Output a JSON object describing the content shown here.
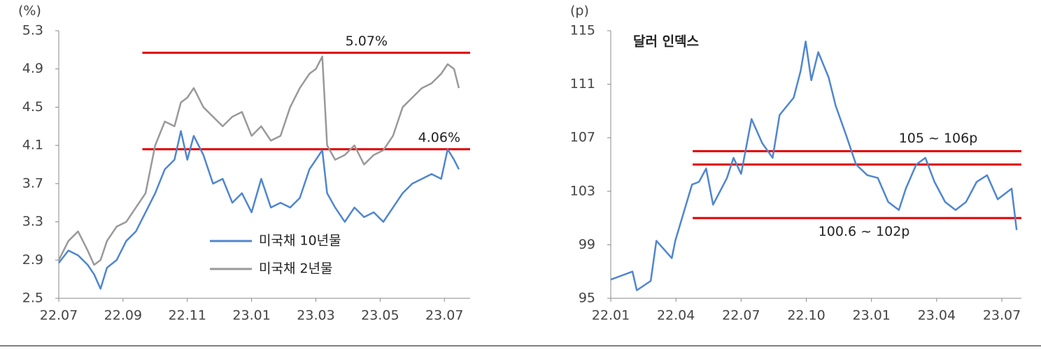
{
  "chart_data": [
    {
      "type": "line",
      "unit_label": "(%)",
      "xlim": [
        0,
        12.8
      ],
      "ylim": [
        2.5,
        5.3
      ],
      "xticks": [
        {
          "value": 0,
          "label": "22.07"
        },
        {
          "value": 2,
          "label": "22.09"
        },
        {
          "value": 4,
          "label": "22.11"
        },
        {
          "value": 6,
          "label": "23.01"
        },
        {
          "value": 8,
          "label": "23.03"
        },
        {
          "value": 10,
          "label": "23.05"
        },
        {
          "value": 12,
          "label": "23.07"
        }
      ],
      "yticks": [
        2.5,
        2.9,
        3.3,
        3.7,
        4.1,
        4.5,
        4.9,
        5.3
      ],
      "x": [
        0,
        0.3,
        0.6,
        0.9,
        1.1,
        1.3,
        1.5,
        1.8,
        2.1,
        2.4,
        2.7,
        3.0,
        3.3,
        3.6,
        3.8,
        4.0,
        4.2,
        4.5,
        4.8,
        5.1,
        5.4,
        5.7,
        6.0,
        6.3,
        6.6,
        6.9,
        7.2,
        7.5,
        7.8,
        8.0,
        8.2,
        8.35,
        8.6,
        8.9,
        9.2,
        9.5,
        9.8,
        10.1,
        10.4,
        10.7,
        11.0,
        11.3,
        11.6,
        11.9,
        12.1,
        12.3,
        12.45
      ],
      "series": [
        {
          "name": "미국채 10년물",
          "color": "#4f86cf",
          "values": [
            2.87,
            3.0,
            2.95,
            2.85,
            2.75,
            2.6,
            2.82,
            2.9,
            3.1,
            3.2,
            3.4,
            3.6,
            3.85,
            3.95,
            4.25,
            3.95,
            4.2,
            4.0,
            3.7,
            3.75,
            3.5,
            3.6,
            3.4,
            3.75,
            3.45,
            3.5,
            3.45,
            3.55,
            3.85,
            3.95,
            4.05,
            3.6,
            3.45,
            3.3,
            3.45,
            3.35,
            3.4,
            3.3,
            3.45,
            3.6,
            3.7,
            3.75,
            3.8,
            3.75,
            4.06,
            3.95,
            3.85
          ]
        },
        {
          "name": "미국채 2년물",
          "color": "#999999",
          "values": [
            2.9,
            3.1,
            3.2,
            3.0,
            2.85,
            2.9,
            3.1,
            3.25,
            3.3,
            3.45,
            3.6,
            4.1,
            4.35,
            4.3,
            4.55,
            4.6,
            4.7,
            4.5,
            4.4,
            4.3,
            4.4,
            4.45,
            4.2,
            4.3,
            4.15,
            4.2,
            4.5,
            4.7,
            4.85,
            4.9,
            5.03,
            4.1,
            3.95,
            4.0,
            4.1,
            3.9,
            4.0,
            4.05,
            4.2,
            4.5,
            4.6,
            4.7,
            4.75,
            4.85,
            4.95,
            4.9,
            4.7
          ]
        }
      ],
      "hlines": [
        5.07,
        4.06
      ],
      "hline_labels": [
        "5.07%",
        "4.06%"
      ],
      "hline_color": "#e00000",
      "hline_from": 2.6
    },
    {
      "type": "line",
      "unit_label": "(p)",
      "title": "달러 인덱스",
      "xlim": [
        0,
        18.9
      ],
      "ylim": [
        95,
        115
      ],
      "xticks": [
        {
          "value": 0,
          "label": "22.01"
        },
        {
          "value": 3,
          "label": "22.04"
        },
        {
          "value": 6,
          "label": "22.07"
        },
        {
          "value": 9,
          "label": "22.10"
        },
        {
          "value": 12,
          "label": "23.01"
        },
        {
          "value": 15,
          "label": "23.04"
        },
        {
          "value": 18,
          "label": "23.07"
        }
      ],
      "yticks": [
        95,
        99,
        103,
        107,
        111,
        115
      ],
      "x": [
        0,
        1,
        1.2,
        1.84,
        2.1,
        2.81,
        2.97,
        3.74,
        4.06,
        4.39,
        4.71,
        5.35,
        5.65,
        6.0,
        6.48,
        6.97,
        7.45,
        7.77,
        8.42,
        8.74,
        8.97,
        9.23,
        9.55,
        10.03,
        10.35,
        10.81,
        11.29,
        11.81,
        12.29,
        12.77,
        13.26,
        13.58,
        14.06,
        14.48,
        14.9,
        15.39,
        15.87,
        16.35,
        16.84,
        17.32,
        17.81,
        18.45,
        18.68
      ],
      "series": [
        {
          "name": "달러 인덱스",
          "color": "#4f86cf",
          "values": [
            96.4,
            97,
            95.6,
            96.3,
            99.3,
            98,
            99.3,
            103.5,
            103.7,
            104.7,
            102,
            104,
            105.5,
            104.3,
            108.4,
            106.6,
            105.5,
            108.7,
            110,
            112,
            114.2,
            111.3,
            113.4,
            111.5,
            109.4,
            107.3,
            105,
            104.2,
            104,
            102.2,
            101.6,
            103.2,
            105,
            105.5,
            103.7,
            102.2,
            101.6,
            102.2,
            103.7,
            104.2,
            102.4,
            103.2,
            100.1
          ]
        }
      ],
      "hlines": [
        106,
        105,
        101
      ],
      "hline_color": "#e00000",
      "hline_from": 3.77,
      "annotations": [
        "105 ~ 106p",
        "100.6 ~ 102p"
      ]
    }
  ]
}
